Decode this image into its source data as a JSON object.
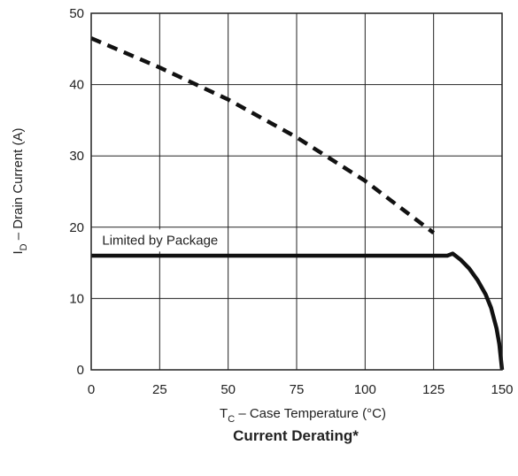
{
  "chart_data": {
    "type": "line",
    "title": "Current Derating*",
    "xlabel": {
      "main": "T",
      "sub": "C",
      "rest": " – Case Temperature (°C)"
    },
    "ylabel": {
      "main": "I",
      "sub": "D",
      "rest": " – Drain Current (A)"
    },
    "xlim": [
      0,
      150
    ],
    "ylim": [
      0,
      50
    ],
    "xticks": [
      0,
      25,
      50,
      75,
      100,
      125,
      150
    ],
    "yticks": [
      0,
      10,
      20,
      30,
      40,
      50
    ],
    "grid": true,
    "series": [
      {
        "style": "dashed",
        "x": [
          0,
          25,
          50,
          75,
          100,
          125
        ],
        "y": [
          46.5,
          42.4,
          37.9,
          32.6,
          26.5,
          19.2
        ]
      },
      {
        "style": "solid",
        "x": [
          0,
          25,
          50,
          75,
          100,
          125,
          130,
          132,
          135,
          138,
          141,
          144,
          146,
          148,
          149,
          150
        ],
        "y": [
          16,
          16,
          16,
          16,
          16,
          16,
          16,
          16.3,
          15.4,
          14.2,
          12.6,
          10.6,
          8.7,
          5.8,
          3.6,
          0
        ]
      }
    ],
    "annotations": [
      {
        "text": "Limited by Package",
        "x": 4,
        "y": 18.2
      }
    ]
  }
}
